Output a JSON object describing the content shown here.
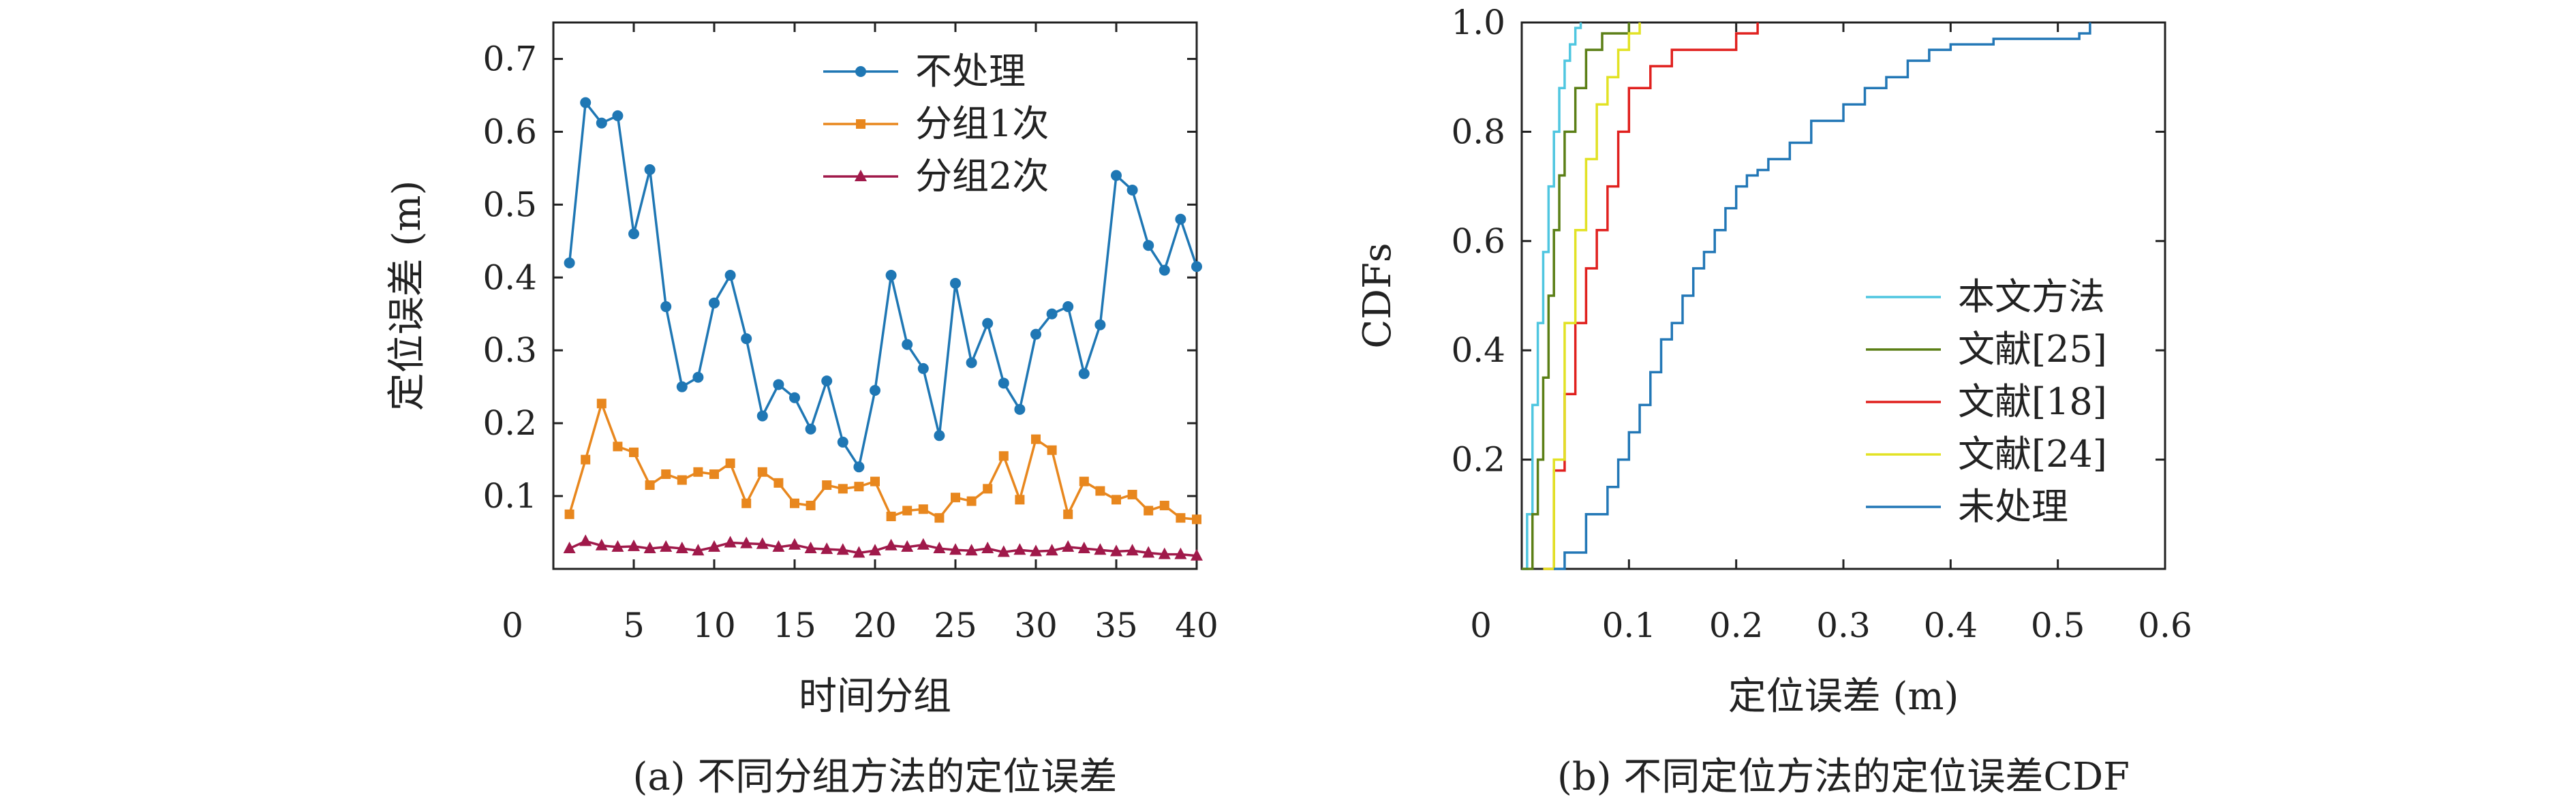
{
  "chart_data": [
    {
      "type": "line",
      "xlabel": "时间分组",
      "ylabel": "定位误差 (m)",
      "caption": "(a) 不同分组方法的定位误差",
      "xlim": [
        0,
        40
      ],
      "ylim": [
        0,
        0.75
      ],
      "xticks": [
        0,
        5,
        10,
        15,
        20,
        25,
        30,
        35,
        40
      ],
      "yticks": [
        0.1,
        0.2,
        0.3,
        0.4,
        0.5,
        0.6,
        0.7
      ],
      "legend_position": "top-center",
      "x": [
        1,
        2,
        3,
        4,
        5,
        6,
        7,
        8,
        9,
        10,
        11,
        12,
        13,
        14,
        15,
        16,
        17,
        18,
        19,
        20,
        21,
        22,
        23,
        24,
        25,
        26,
        27,
        28,
        29,
        30,
        31,
        32,
        33,
        34,
        35,
        36,
        37,
        38,
        39,
        40
      ],
      "series": [
        {
          "name": "不处理",
          "color": "#1f77b4",
          "marker": "circle",
          "values": [
            0.42,
            0.64,
            0.612,
            0.622,
            0.46,
            0.548,
            0.36,
            0.25,
            0.263,
            0.365,
            0.403,
            0.316,
            0.21,
            0.253,
            0.235,
            0.192,
            0.258,
            0.174,
            0.14,
            0.245,
            0.403,
            0.308,
            0.275,
            0.183,
            0.392,
            0.283,
            0.337,
            0.255,
            0.219,
            0.322,
            0.35,
            0.36,
            0.268,
            0.335,
            0.54,
            0.52,
            0.444,
            0.41,
            0.48,
            0.415
          ]
        },
        {
          "name": "分组1次",
          "color": "#e8871e",
          "marker": "square",
          "values": [
            0.075,
            0.15,
            0.227,
            0.168,
            0.16,
            0.115,
            0.13,
            0.122,
            0.133,
            0.13,
            0.145,
            0.09,
            0.133,
            0.118,
            0.09,
            0.087,
            0.115,
            0.11,
            0.113,
            0.12,
            0.072,
            0.08,
            0.082,
            0.07,
            0.098,
            0.093,
            0.11,
            0.155,
            0.095,
            0.178,
            0.163,
            0.075,
            0.12,
            0.107,
            0.095,
            0.102,
            0.08,
            0.087,
            0.07,
            0.068
          ]
        },
        {
          "name": "分组2次",
          "color": "#a0194a",
          "marker": "triangle",
          "values": [
            0.028,
            0.038,
            0.032,
            0.03,
            0.031,
            0.028,
            0.03,
            0.028,
            0.025,
            0.03,
            0.036,
            0.035,
            0.034,
            0.03,
            0.033,
            0.028,
            0.027,
            0.026,
            0.022,
            0.025,
            0.032,
            0.03,
            0.033,
            0.028,
            0.026,
            0.025,
            0.028,
            0.023,
            0.026,
            0.024,
            0.025,
            0.03,
            0.028,
            0.026,
            0.024,
            0.025,
            0.022,
            0.02,
            0.02,
            0.018
          ]
        }
      ]
    },
    {
      "type": "line",
      "subtype": "cdf-step",
      "xlabel": "定位误差 (m)",
      "ylabel": "CDFs",
      "caption": "(b) 不同定位方法的定位误差CDF",
      "xlim": [
        0,
        0.6
      ],
      "ylim": [
        0,
        1.0
      ],
      "xticks": [
        0,
        0.1,
        0.2,
        0.3,
        0.4,
        0.5,
        0.6
      ],
      "yticks": [
        0.2,
        0.4,
        0.6,
        0.8,
        1.0
      ],
      "legend_position": "bottom-right",
      "series": [
        {
          "name": "本文方法",
          "color": "#4fc6e0",
          "x": [
            0.0,
            0.005,
            0.01,
            0.015,
            0.02,
            0.025,
            0.03,
            0.035,
            0.04,
            0.045,
            0.05,
            0.055
          ],
          "y": [
            0.0,
            0.1,
            0.3,
            0.45,
            0.58,
            0.7,
            0.8,
            0.88,
            0.93,
            0.96,
            0.99,
            1.0
          ]
        },
        {
          "name": "文献[25]",
          "color": "#5b7f16",
          "x": [
            0.0,
            0.01,
            0.015,
            0.02,
            0.025,
            0.03,
            0.035,
            0.04,
            0.05,
            0.06,
            0.075,
            0.09,
            0.1
          ],
          "y": [
            0.0,
            0.1,
            0.2,
            0.35,
            0.5,
            0.62,
            0.72,
            0.8,
            0.88,
            0.95,
            0.98,
            0.98,
            1.0
          ]
        },
        {
          "name": "文献[18]",
          "color": "#e0201e",
          "x": [
            0.02,
            0.03,
            0.04,
            0.05,
            0.06,
            0.07,
            0.08,
            0.09,
            0.1,
            0.12,
            0.14,
            0.16,
            0.2,
            0.22
          ],
          "y": [
            0.0,
            0.18,
            0.32,
            0.45,
            0.55,
            0.62,
            0.7,
            0.8,
            0.88,
            0.92,
            0.95,
            0.95,
            0.98,
            1.0
          ]
        },
        {
          "name": "文献[24]",
          "color": "#e2e224",
          "x": [
            0.02,
            0.03,
            0.04,
            0.05,
            0.06,
            0.07,
            0.08,
            0.09,
            0.1,
            0.11
          ],
          "y": [
            0.0,
            0.2,
            0.45,
            0.62,
            0.75,
            0.85,
            0.9,
            0.95,
            0.98,
            1.0
          ]
        },
        {
          "name": "未处理",
          "color": "#2277b6",
          "x": [
            0.03,
            0.04,
            0.06,
            0.08,
            0.09,
            0.1,
            0.11,
            0.12,
            0.13,
            0.14,
            0.15,
            0.16,
            0.17,
            0.18,
            0.19,
            0.2,
            0.21,
            0.22,
            0.23,
            0.25,
            0.27,
            0.3,
            0.32,
            0.34,
            0.36,
            0.38,
            0.4,
            0.44,
            0.52,
            0.53
          ],
          "y": [
            0.0,
            0.03,
            0.1,
            0.15,
            0.2,
            0.25,
            0.3,
            0.36,
            0.42,
            0.45,
            0.5,
            0.55,
            0.58,
            0.62,
            0.66,
            0.7,
            0.72,
            0.73,
            0.75,
            0.78,
            0.82,
            0.85,
            0.88,
            0.9,
            0.93,
            0.95,
            0.96,
            0.97,
            0.98,
            1.0
          ]
        }
      ]
    }
  ]
}
